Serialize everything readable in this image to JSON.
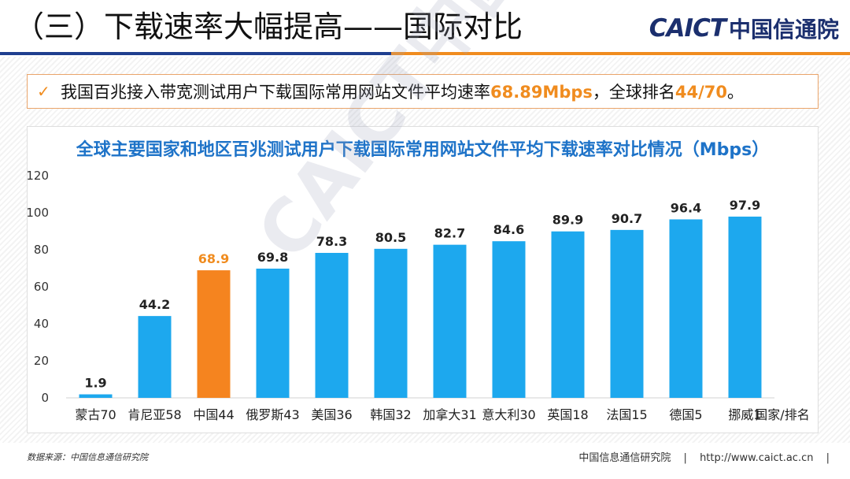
{
  "header": {
    "title": "（三）下载速率大幅提高——国际对比",
    "logo_latin": "CAICT",
    "logo_cn": "中国信通院"
  },
  "callout": {
    "prefix": "我国百兆接入带宽测试用户下载国际常用网站文件平均速率",
    "speed": "68.89Mbps",
    "middle": "，全球排名",
    "rank": "44/70",
    "suffix": "。"
  },
  "watermark": "CAICT中国信通院",
  "chart_data": {
    "type": "bar",
    "title": "全球主要国家和地区百兆测试用户下载国际常用网站文件平均下载速率对比情况（Mbps）",
    "categories": [
      "蒙古70",
      "肯尼亚58",
      "中国44",
      "俄罗斯43",
      "美国36",
      "韩国32",
      "加拿大31",
      "意大利30",
      "英国18",
      "法国15",
      "德国5",
      "挪威1"
    ],
    "values": [
      1.9,
      44.2,
      68.9,
      69.8,
      78.3,
      80.5,
      82.7,
      84.6,
      89.9,
      90.7,
      96.4,
      97.9
    ],
    "labels": [
      "1.9",
      "44.2",
      "68.9",
      "69.8",
      "78.3",
      "80.5",
      "82.7",
      "84.6",
      "89.9",
      "90.7",
      "96.4",
      "97.9"
    ],
    "highlight_index": 2,
    "xlabel": "国家/排名",
    "ylabel": "",
    "ylim": [
      0,
      120
    ],
    "yticks": [
      0,
      20,
      40,
      60,
      80,
      100,
      120
    ],
    "colors": {
      "bar": "#1da8ee",
      "highlight": "#f5841f",
      "label": "#222222",
      "highlight_label": "#f08c1f"
    }
  },
  "footer": {
    "source": "数据来源：中国信息通信研究院",
    "org": "中国信息通信研究院",
    "sep": "|",
    "url": "http://www.caict.ac.cn"
  }
}
